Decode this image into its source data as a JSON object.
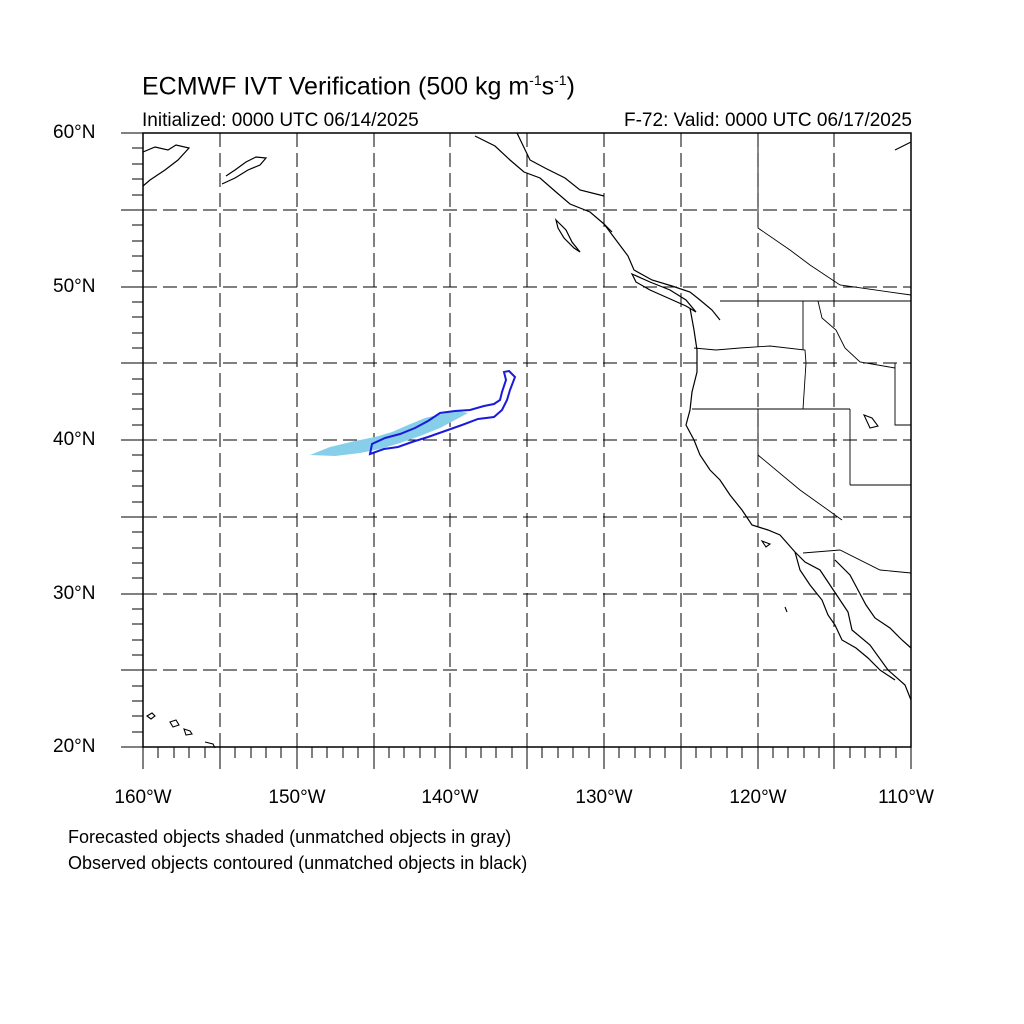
{
  "header": {
    "title_main": "ECMWF IVT Verification (500 kg m",
    "title_exp1": "-1",
    "title_mid": "s",
    "title_exp2": "-1",
    "title_end": ")",
    "initialized": "Initialized: 0000 UTC 06/14/2025",
    "valid": "F-72: Valid: 0000 UTC 06/17/2025"
  },
  "axes": {
    "lat_labels": [
      "60°N",
      "50°N",
      "40°N",
      "30°N",
      "20°N"
    ],
    "lon_labels": [
      "160°W",
      "150°W",
      "140°W",
      "130°W",
      "120°W",
      "110°W"
    ]
  },
  "legend_notes": {
    "line1": "Forecasted objects shaded (unmatched objects in gray)",
    "line2": "Observed objects contoured (unmatched objects in black)"
  },
  "colors": {
    "forecast_fill": "#87CEEB",
    "observed_contour": "#1A1ADB",
    "coastline": "#000000",
    "grid": "#000000"
  },
  "map_extent": {
    "lon_min": -160,
    "lon_max": -110,
    "lat_min": 20,
    "lat_max": 60
  }
}
